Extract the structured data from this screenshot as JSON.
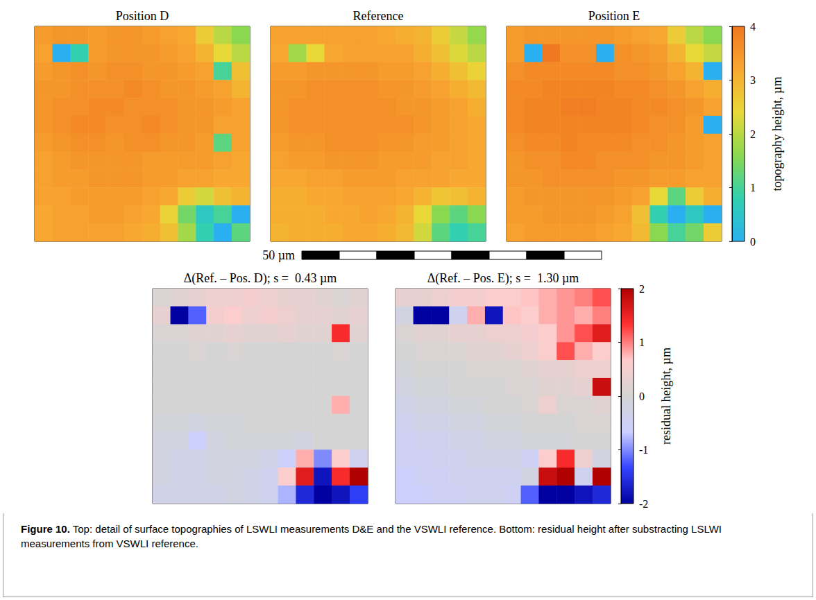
{
  "chart_data": [
    {
      "type": "heatmap",
      "colorbar": {
        "label": "topography height, µm",
        "range": [
          0,
          4
        ],
        "ticks": [
          0,
          1,
          2,
          3,
          4
        ]
      },
      "panels": [
        {
          "title": "Position D",
          "cells": [
            [
              3.4,
              3.5,
              3.5,
              3.4,
              3.5,
              3.5,
              3.4,
              3.3,
              3.2,
              2.6,
              2.0,
              1.6
            ],
            [
              3.3,
              -0.3,
              0.8,
              3.4,
              3.5,
              3.5,
              3.5,
              3.4,
              3.3,
              3.0,
              2.4,
              2.0
            ],
            [
              3.4,
              3.5,
              3.6,
              3.5,
              3.6,
              3.6,
              3.5,
              3.5,
              3.4,
              3.3,
              1.0,
              2.8
            ],
            [
              3.5,
              3.5,
              3.6,
              3.6,
              3.6,
              3.7,
              3.6,
              3.5,
              3.5,
              3.4,
              3.3,
              3.0
            ],
            [
              3.5,
              3.6,
              3.6,
              3.7,
              3.7,
              3.6,
              3.6,
              3.6,
              3.5,
              3.5,
              3.4,
              3.3
            ],
            [
              3.5,
              3.6,
              3.7,
              3.7,
              3.6,
              3.6,
              3.7,
              3.6,
              3.5,
              3.5,
              3.3,
              3.3
            ],
            [
              3.4,
              3.5,
              3.6,
              3.6,
              3.5,
              3.6,
              3.6,
              3.5,
              3.5,
              3.4,
              1.2,
              3.3
            ],
            [
              3.3,
              3.4,
              3.5,
              3.5,
              3.5,
              3.5,
              3.4,
              3.4,
              3.4,
              3.4,
              3.3,
              3.2
            ],
            [
              3.3,
              3.4,
              3.4,
              3.5,
              3.5,
              3.5,
              3.4,
              3.4,
              3.3,
              3.3,
              3.2,
              3.2
            ],
            [
              3.3,
              3.3,
              3.4,
              3.4,
              3.4,
              3.4,
              3.3,
              3.2,
              2.6,
              2.2,
              2.8,
              3.0
            ],
            [
              3.2,
              3.3,
              3.3,
              3.4,
              3.4,
              3.3,
              3.2,
              2.5,
              1.4,
              0.6,
              1.0,
              -0.4
            ],
            [
              3.2,
              3.3,
              3.3,
              3.3,
              3.3,
              3.2,
              3.1,
              2.8,
              1.8,
              0.8,
              -0.3,
              1.2
            ]
          ]
        },
        {
          "title": "Reference",
          "cells": [
            [
              3.3,
              3.3,
              3.3,
              3.3,
              3.3,
              3.3,
              3.2,
              3.1,
              3.0,
              2.6,
              2.1,
              1.7
            ],
            [
              3.2,
              1.8,
              2.4,
              3.2,
              3.3,
              3.3,
              3.3,
              3.3,
              3.1,
              2.8,
              2.3,
              2.0
            ],
            [
              3.4,
              3.4,
              3.5,
              3.5,
              3.5,
              3.5,
              3.4,
              3.4,
              3.3,
              3.1,
              2.8,
              2.5
            ],
            [
              3.5,
              3.5,
              3.6,
              3.6,
              3.6,
              3.6,
              3.5,
              3.5,
              3.4,
              3.3,
              3.1,
              2.9
            ],
            [
              3.5,
              3.6,
              3.6,
              3.6,
              3.6,
              3.6,
              3.6,
              3.5,
              3.5,
              3.4,
              3.3,
              3.1
            ],
            [
              3.5,
              3.6,
              3.6,
              3.6,
              3.6,
              3.6,
              3.6,
              3.6,
              3.5,
              3.4,
              3.3,
              3.2
            ],
            [
              3.4,
              3.5,
              3.5,
              3.6,
              3.6,
              3.6,
              3.5,
              3.5,
              3.4,
              3.4,
              3.3,
              3.2
            ],
            [
              3.3,
              3.4,
              3.4,
              3.5,
              3.5,
              3.5,
              3.4,
              3.4,
              3.4,
              3.3,
              3.3,
              3.2
            ],
            [
              3.2,
              3.2,
              3.3,
              3.3,
              3.4,
              3.4,
              3.4,
              3.3,
              3.3,
              3.3,
              3.2,
              3.2
            ],
            [
              3.1,
              3.1,
              3.2,
              3.2,
              3.3,
              3.3,
              3.3,
              3.2,
              3.0,
              2.7,
              2.8,
              3.0
            ],
            [
              3.1,
              3.1,
              3.1,
              3.2,
              3.2,
              3.3,
              3.2,
              3.0,
              2.4,
              1.6,
              1.2,
              1.6
            ],
            [
              3.0,
              3.1,
              3.1,
              3.1,
              3.2,
              3.2,
              3.1,
              2.9,
              2.2,
              1.2,
              0.8,
              1.0
            ]
          ]
        },
        {
          "title": "Position E",
          "cells": [
            [
              3.4,
              3.5,
              3.5,
              3.5,
              3.5,
              3.5,
              3.4,
              3.3,
              3.2,
              2.6,
              2.0,
              1.6
            ],
            [
              3.4,
              -0.4,
              4.5,
              3.6,
              3.6,
              -0.3,
              3.6,
              3.5,
              3.4,
              3.0,
              2.4,
              2.1
            ],
            [
              3.6,
              3.7,
              3.7,
              3.7,
              3.7,
              3.7,
              3.6,
              3.6,
              3.5,
              3.3,
              3.0,
              -0.3
            ],
            [
              3.7,
              3.7,
              3.8,
              3.8,
              3.8,
              3.8,
              3.7,
              3.7,
              3.6,
              3.5,
              3.3,
              3.1
            ],
            [
              3.7,
              3.8,
              3.8,
              3.9,
              3.9,
              3.8,
              3.8,
              3.7,
              3.7,
              3.6,
              3.5,
              3.3
            ],
            [
              3.7,
              3.8,
              3.8,
              3.8,
              3.8,
              3.8,
              3.8,
              3.7,
              3.6,
              3.6,
              3.4,
              -0.2
            ],
            [
              3.6,
              3.7,
              3.7,
              3.8,
              3.7,
              3.7,
              3.7,
              3.6,
              3.6,
              3.5,
              3.4,
              3.3
            ],
            [
              3.5,
              3.6,
              3.6,
              3.7,
              3.7,
              3.6,
              3.6,
              3.6,
              3.5,
              3.5,
              3.4,
              3.3
            ],
            [
              3.5,
              3.5,
              3.6,
              3.6,
              3.6,
              3.6,
              3.5,
              3.5,
              3.4,
              3.4,
              3.3,
              3.3
            ],
            [
              3.4,
              3.5,
              3.5,
              3.5,
              3.5,
              3.5,
              3.4,
              3.3,
              2.4,
              1.2,
              2.6,
              3.1
            ],
            [
              3.4,
              3.4,
              3.5,
              3.5,
              3.5,
              3.4,
              3.3,
              2.8,
              0.8,
              -0.4,
              0.6,
              -0.3
            ],
            [
              3.3,
              3.4,
              3.4,
              3.4,
              3.4,
              3.3,
              3.2,
              2.9,
              1.6,
              1.0,
              1.4,
              2.6
            ]
          ]
        }
      ]
    },
    {
      "type": "heatmap",
      "colorbar": {
        "label": "residual height, µm",
        "range": [
          -2,
          2
        ],
        "ticks": [
          -2,
          -1,
          0,
          1,
          2
        ]
      },
      "panels": [
        {
          "title": "Δ(Ref. – Pos. D); s =  0.43 µm",
          "cells": [
            [
              0.1,
              0.2,
              0.3,
              0.4,
              0.4,
              0.5,
              0.4,
              0.3,
              0.3,
              0.2,
              0.1,
              0.2
            ],
            [
              0.3,
              -2.0,
              -1.2,
              0.5,
              0.6,
              0.4,
              0.5,
              0.4,
              0.3,
              0.3,
              0.2,
              0.3
            ],
            [
              0.1,
              0.1,
              0.2,
              0.2,
              0.3,
              0.2,
              0.2,
              0.3,
              0.2,
              0.2,
              1.4,
              0.2
            ],
            [
              0.0,
              0.0,
              0.1,
              0.0,
              0.1,
              0.0,
              0.0,
              0.0,
              0.0,
              0.0,
              0.1,
              0.0
            ],
            [
              0.0,
              0.0,
              0.0,
              0.0,
              0.0,
              0.0,
              0.0,
              0.0,
              0.0,
              0.0,
              0.0,
              0.0
            ],
            [
              0.0,
              0.0,
              0.0,
              0.0,
              0.0,
              0.0,
              0.0,
              0.0,
              0.0,
              0.0,
              0.0,
              0.0
            ],
            [
              0.0,
              0.0,
              0.0,
              0.0,
              0.0,
              0.0,
              0.0,
              0.0,
              0.0,
              0.0,
              0.8,
              0.0
            ],
            [
              -0.1,
              -0.1,
              -0.2,
              -0.1,
              -0.1,
              0.0,
              0.0,
              0.0,
              0.0,
              0.0,
              0.0,
              0.0
            ],
            [
              -0.2,
              -0.2,
              -0.6,
              -0.2,
              -0.1,
              -0.1,
              -0.1,
              -0.1,
              -0.2,
              0.0,
              0.0,
              0.0
            ],
            [
              -0.2,
              -0.3,
              -0.3,
              -0.2,
              -0.2,
              -0.2,
              -0.3,
              -0.6,
              0.8,
              -1.0,
              0.6,
              -0.4
            ],
            [
              -0.2,
              -0.3,
              -0.3,
              -0.2,
              -0.2,
              -0.3,
              -0.4,
              0.6,
              1.6,
              -1.8,
              1.4,
              2.0
            ],
            [
              -0.3,
              -0.3,
              -0.3,
              -0.3,
              -0.2,
              -0.3,
              -0.4,
              -0.8,
              -1.6,
              -2.0,
              -1.8,
              -1.4
            ]
          ]
        },
        {
          "title": "Δ(Ref. – Pos. E); s =  1.30 µm",
          "cells": [
            [
              0.3,
              0.3,
              0.4,
              0.5,
              0.5,
              0.6,
              0.6,
              0.7,
              0.8,
              0.9,
              1.0,
              1.2
            ],
            [
              -0.2,
              -2.0,
              -2.0,
              -0.4,
              0.8,
              -1.8,
              0.7,
              0.6,
              0.8,
              0.9,
              0.8,
              1.0
            ],
            [
              0.1,
              0.2,
              0.2,
              0.3,
              0.3,
              0.4,
              0.4,
              0.5,
              0.6,
              0.9,
              1.2,
              1.6
            ],
            [
              0.0,
              0.1,
              0.1,
              0.1,
              0.2,
              0.2,
              0.3,
              0.4,
              0.6,
              1.2,
              0.8,
              0.6
            ],
            [
              -0.1,
              0.0,
              0.0,
              0.0,
              0.1,
              0.1,
              0.1,
              0.2,
              0.3,
              0.3,
              0.4,
              0.4
            ],
            [
              -0.2,
              -0.1,
              -0.1,
              0.0,
              0.0,
              0.0,
              0.1,
              0.1,
              0.2,
              0.2,
              0.3,
              1.8
            ],
            [
              -0.3,
              -0.2,
              -0.2,
              -0.1,
              -0.1,
              0.0,
              0.0,
              0.1,
              0.4,
              0.1,
              0.1,
              0.2
            ],
            [
              -0.4,
              -0.3,
              -0.3,
              -0.2,
              -0.2,
              -0.1,
              -0.1,
              0.0,
              0.0,
              0.0,
              0.1,
              0.1
            ],
            [
              -0.5,
              -0.4,
              -0.4,
              -0.3,
              -0.3,
              -0.2,
              -0.2,
              -0.1,
              -0.1,
              -0.1,
              0.0,
              0.0
            ],
            [
              -0.5,
              -0.5,
              -0.4,
              -0.4,
              -0.3,
              -0.3,
              -0.3,
              -0.5,
              0.6,
              1.4,
              0.4,
              -0.2
            ],
            [
              -0.6,
              -0.5,
              -0.5,
              -0.4,
              -0.4,
              -0.4,
              -0.4,
              -0.2,
              1.8,
              2.0,
              -0.4,
              2.0
            ],
            [
              -0.6,
              -0.6,
              -0.5,
              -0.5,
              -0.4,
              -0.4,
              -0.5,
              -1.2,
              -2.0,
              -2.0,
              -1.8,
              -1.6
            ]
          ]
        }
      ]
    }
  ],
  "scale_bar": {
    "label": "50 µm"
  },
  "caption": {
    "label": "Figure 10.",
    "text": "Top: detail of surface topographies of LSWLI measurements D&E and the VSWLI reference. Bottom: residual height after substracting LSLWI measurements from VSWLI reference."
  }
}
